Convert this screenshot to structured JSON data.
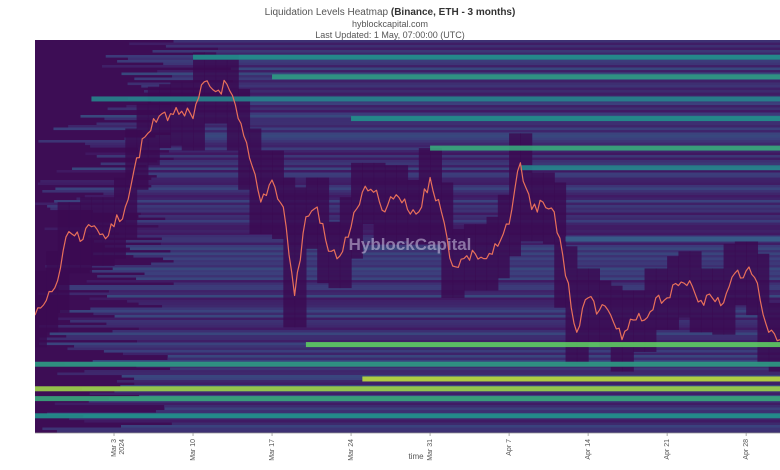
{
  "title": {
    "prefix": "Liquidation Levels Heatmap ",
    "bold": "(Binance, ETH - 3 months)",
    "source": "hyblockcapital.com",
    "updated": "Last Updated: 1 May, 07:00:00 (UTC)"
  },
  "watermark": "HyblockCapital",
  "colors": {
    "low": "#440154",
    "mid": "#21908d",
    "high": "#fde725",
    "price_line": "#e8705a"
  },
  "chart_data": {
    "type": "heatmap",
    "xlabel": "time",
    "x_range": [
      "2024-02-25",
      "2024-05-01"
    ],
    "x_ticks": [
      {
        "date": "2024-03-03",
        "label": "Mar 3",
        "sublabel": "2024"
      },
      {
        "date": "2024-03-10",
        "label": "Mar 10"
      },
      {
        "date": "2024-03-17",
        "label": "Mar 17"
      },
      {
        "date": "2024-03-24",
        "label": "Mar 24"
      },
      {
        "date": "2024-03-31",
        "label": "Mar 31"
      },
      {
        "date": "2024-04-07",
        "label": "Apr 7"
      },
      {
        "date": "2024-04-14",
        "label": "Apr 14"
      },
      {
        "date": "2024-04-21",
        "label": "Apr 21"
      },
      {
        "date": "2024-04-28",
        "label": "Apr 28"
      }
    ],
    "y_range": [
      2600,
      4200
    ],
    "y_axis_visible": false,
    "price_series": {
      "name": "ETH price",
      "points": [
        [
          "2024-02-25",
          3080
        ],
        [
          "2024-02-26",
          3140
        ],
        [
          "2024-02-27",
          3220
        ],
        [
          "2024-02-28",
          3420
        ],
        [
          "2024-02-29",
          3380
        ],
        [
          "2024-03-01",
          3440
        ],
        [
          "2024-03-02",
          3410
        ],
        [
          "2024-03-03",
          3440
        ],
        [
          "2024-03-04",
          3520
        ],
        [
          "2024-03-05",
          3720
        ],
        [
          "2024-03-06",
          3820
        ],
        [
          "2024-03-07",
          3890
        ],
        [
          "2024-03-08",
          3900
        ],
        [
          "2024-03-09",
          3910
        ],
        [
          "2024-03-10",
          3880
        ],
        [
          "2024-03-11",
          4030
        ],
        [
          "2024-03-12",
          3990
        ],
        [
          "2024-03-13",
          4020
        ],
        [
          "2024-03-14",
          3880
        ],
        [
          "2024-03-15",
          3720
        ],
        [
          "2024-03-16",
          3540
        ],
        [
          "2024-03-17",
          3630
        ],
        [
          "2024-03-18",
          3520
        ],
        [
          "2024-03-19",
          3160
        ],
        [
          "2024-03-20",
          3480
        ],
        [
          "2024-03-21",
          3520
        ],
        [
          "2024-03-22",
          3340
        ],
        [
          "2024-03-23",
          3320
        ],
        [
          "2024-03-24",
          3440
        ],
        [
          "2024-03-25",
          3580
        ],
        [
          "2024-03-26",
          3580
        ],
        [
          "2024-03-27",
          3500
        ],
        [
          "2024-03-28",
          3570
        ],
        [
          "2024-03-29",
          3510
        ],
        [
          "2024-03-30",
          3500
        ],
        [
          "2024-03-31",
          3640
        ],
        [
          "2024-04-01",
          3500
        ],
        [
          "2024-04-02",
          3280
        ],
        [
          "2024-04-03",
          3310
        ],
        [
          "2024-04-04",
          3330
        ],
        [
          "2024-04-05",
          3310
        ],
        [
          "2024-04-06",
          3360
        ],
        [
          "2024-04-07",
          3450
        ],
        [
          "2024-04-08",
          3700
        ],
        [
          "2024-04-09",
          3510
        ],
        [
          "2024-04-10",
          3540
        ],
        [
          "2024-04-11",
          3500
        ],
        [
          "2024-04-12",
          3240
        ],
        [
          "2024-04-13",
          3010
        ],
        [
          "2024-04-14",
          3150
        ],
        [
          "2024-04-15",
          3100
        ],
        [
          "2024-04-16",
          3080
        ],
        [
          "2024-04-17",
          2980
        ],
        [
          "2024-04-18",
          3060
        ],
        [
          "2024-04-19",
          3060
        ],
        [
          "2024-04-20",
          3150
        ],
        [
          "2024-04-21",
          3150
        ],
        [
          "2024-04-22",
          3200
        ],
        [
          "2024-04-23",
          3220
        ],
        [
          "2024-04-24",
          3140
        ],
        [
          "2024-04-25",
          3150
        ],
        [
          "2024-04-26",
          3130
        ],
        [
          "2024-04-27",
          3250
        ],
        [
          "2024-04-28",
          3260
        ],
        [
          "2024-04-29",
          3210
        ],
        [
          "2024-04-30",
          3010
        ],
        [
          "2024-05-01",
          2980
        ]
      ]
    },
    "liquidation_bands": [
      {
        "price": 4130,
        "start": "2024-03-10",
        "intensity": 0.5
      },
      {
        "price": 4050,
        "start": "2024-03-17",
        "intensity": 0.55
      },
      {
        "price": 3960,
        "start": "2024-03-01",
        "intensity": 0.45
      },
      {
        "price": 3880,
        "start": "2024-03-24",
        "intensity": 0.5
      },
      {
        "price": 3760,
        "start": "2024-03-31",
        "intensity": 0.6
      },
      {
        "price": 3680,
        "start": "2024-04-08",
        "intensity": 0.45
      },
      {
        "price": 3390,
        "start": "2024-04-12",
        "intensity": 0.3
      },
      {
        "price": 2960,
        "start": "2024-03-20",
        "intensity": 0.75
      },
      {
        "price": 2880,
        "start": "2024-02-25",
        "intensity": 0.55
      },
      {
        "price": 2820,
        "start": "2024-03-25",
        "intensity": 0.9
      },
      {
        "price": 2780,
        "start": "2024-02-25",
        "intensity": 0.85
      },
      {
        "price": 2740,
        "start": "2024-02-25",
        "intensity": 0.6
      },
      {
        "price": 2670,
        "start": "2024-02-25",
        "intensity": 0.5
      }
    ]
  }
}
